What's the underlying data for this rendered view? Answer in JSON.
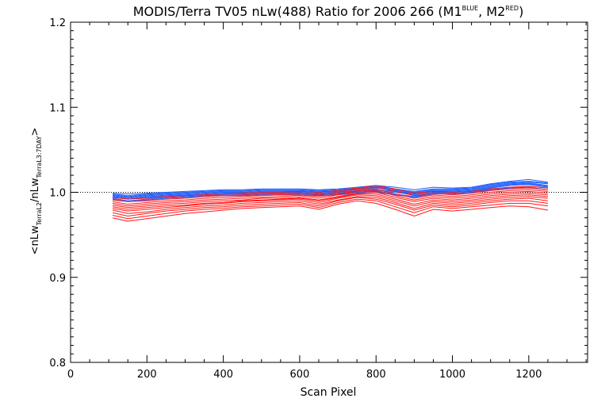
{
  "chart_data": {
    "type": "line",
    "title": {
      "main": "MODIS/Terra TV05 nLw(488) Ratio for 2006 266 (M1",
      "sup1": "BLUE",
      "mid": ", M2",
      "sup2": "RED",
      "end": ")"
    },
    "xlabel": "Scan Pixel",
    "ylabel": {
      "open": "<nLw",
      "sub1": "TerraL2",
      "slash": "/nLw",
      "sub2": "TerraL3:7DAY",
      "close": ">"
    },
    "xlim": [
      0,
      1354
    ],
    "ylim": [
      0.8,
      1.2
    ],
    "xticks": [
      "0",
      "200",
      "400",
      "600",
      "800",
      "1000",
      "1200"
    ],
    "yticks": [
      "0.8",
      "0.9",
      "1.0",
      "1.1",
      "1.2"
    ],
    "reference_line": 1.0,
    "grid": false,
    "x": [
      110,
      150,
      200,
      250,
      300,
      350,
      400,
      450,
      500,
      550,
      600,
      650,
      700,
      750,
      800,
      850,
      900,
      950,
      1000,
      1050,
      1100,
      1150,
      1200,
      1250
    ],
    "series": [
      {
        "color": "#1e5fff",
        "values": [
          0.999,
          0.998,
          0.999,
          1.0,
          1.001,
          1.002,
          1.003,
          1.003,
          1.004,
          1.004,
          1.004,
          1.003,
          1.004,
          1.006,
          1.008,
          1.006,
          1.003,
          1.006,
          1.005,
          1.006,
          1.01,
          1.013,
          1.015,
          1.012
        ]
      },
      {
        "color": "#1e5fff",
        "values": [
          0.998,
          0.996,
          0.998,
          0.999,
          1.0,
          1.001,
          1.002,
          1.002,
          1.003,
          1.003,
          1.003,
          1.002,
          1.003,
          1.005,
          1.007,
          1.004,
          1.001,
          1.004,
          1.004,
          1.005,
          1.009,
          1.012,
          1.013,
          1.011
        ]
      },
      {
        "color": "#1e5fff",
        "values": [
          0.997,
          0.995,
          0.997,
          0.998,
          0.999,
          1.0,
          1.001,
          1.001,
          1.002,
          1.002,
          1.002,
          1.001,
          1.002,
          1.004,
          1.006,
          1.003,
          1.0,
          1.003,
          1.003,
          1.004,
          1.008,
          1.011,
          1.012,
          1.01
        ]
      },
      {
        "color": "#1e5fff",
        "values": [
          0.996,
          0.994,
          0.996,
          0.997,
          0.998,
          0.999,
          1.0,
          1.0,
          1.001,
          1.001,
          1.001,
          1.0,
          1.001,
          1.003,
          1.005,
          1.002,
          0.999,
          1.002,
          1.002,
          1.003,
          1.007,
          1.01,
          1.011,
          1.008
        ]
      },
      {
        "color": "#1e5fff",
        "values": [
          0.995,
          0.993,
          0.995,
          0.996,
          0.997,
          0.998,
          0.999,
          0.999,
          1.0,
          1.0,
          1.0,
          0.999,
          1.0,
          1.002,
          1.003,
          1.001,
          0.998,
          1.001,
          1.001,
          1.002,
          1.006,
          1.009,
          1.01,
          1.007
        ]
      },
      {
        "color": "#1e5fff",
        "values": [
          0.994,
          0.992,
          0.994,
          0.995,
          0.996,
          0.997,
          0.998,
          0.998,
          0.999,
          0.999,
          0.999,
          0.998,
          0.999,
          1.001,
          1.002,
          1.0,
          0.997,
          1.0,
          1.0,
          1.001,
          1.005,
          1.008,
          1.009,
          1.006
        ]
      },
      {
        "color": "#1e5fff",
        "values": [
          0.993,
          0.99,
          0.992,
          0.994,
          0.995,
          0.996,
          0.997,
          0.997,
          0.998,
          0.998,
          0.998,
          0.997,
          0.998,
          1.0,
          1.001,
          0.998,
          0.995,
          0.999,
          0.999,
          1.0,
          1.004,
          1.006,
          1.007,
          1.005
        ]
      },
      {
        "color": "#1e5fff",
        "values": [
          0.992,
          0.989,
          0.991,
          0.993,
          0.994,
          0.995,
          0.996,
          0.996,
          0.997,
          0.997,
          0.997,
          0.996,
          0.997,
          0.999,
          1.0,
          0.997,
          0.994,
          0.998,
          0.998,
          0.999,
          1.003,
          1.005,
          1.006,
          1.003
        ]
      },
      {
        "color": "#ff1414",
        "values": [
          0.994,
          0.992,
          0.993,
          0.995,
          0.996,
          0.997,
          0.998,
          0.999,
          1.0,
          1.0,
          1.001,
          1.0,
          1.002,
          1.005,
          1.008,
          1.004,
          0.999,
          1.001,
          1.0,
          1.001,
          1.004,
          1.006,
          1.007,
          1.005
        ]
      },
      {
        "color": "#ff1414",
        "values": [
          0.991,
          0.989,
          0.99,
          0.992,
          0.993,
          0.995,
          0.996,
          0.997,
          0.998,
          0.998,
          0.999,
          0.997,
          1.0,
          1.004,
          1.006,
          1.001,
          0.996,
          0.999,
          0.997,
          0.999,
          1.002,
          1.004,
          1.005,
          1.003
        ]
      },
      {
        "color": "#ff1414",
        "values": [
          0.989,
          0.986,
          0.988,
          0.99,
          0.991,
          0.993,
          0.994,
          0.995,
          0.996,
          0.997,
          0.997,
          0.995,
          0.998,
          1.002,
          1.004,
          0.998,
          0.993,
          0.997,
          0.995,
          0.997,
          1.0,
          1.002,
          1.003,
          1.001
        ]
      },
      {
        "color": "#ff1414",
        "values": [
          0.987,
          0.984,
          0.986,
          0.988,
          0.989,
          0.991,
          0.992,
          0.993,
          0.994,
          0.995,
          0.996,
          0.993,
          0.997,
          1.001,
          1.002,
          0.996,
          0.991,
          0.995,
          0.993,
          0.995,
          0.998,
          1.0,
          1.001,
          0.999
        ]
      },
      {
        "color": "#ff1414",
        "values": [
          0.985,
          0.982,
          0.984,
          0.986,
          0.987,
          0.989,
          0.99,
          0.991,
          0.993,
          0.993,
          0.994,
          0.991,
          0.995,
          0.999,
          1.0,
          0.994,
          0.989,
          0.993,
          0.991,
          0.993,
          0.996,
          0.998,
          0.999,
          0.997
        ]
      },
      {
        "color": "#ff1414",
        "values": [
          0.983,
          0.98,
          0.982,
          0.984,
          0.985,
          0.987,
          0.988,
          0.99,
          0.991,
          0.992,
          0.993,
          0.99,
          0.994,
          0.998,
          0.998,
          0.992,
          0.986,
          0.991,
          0.989,
          0.991,
          0.994,
          0.996,
          0.997,
          0.995
        ]
      },
      {
        "color": "#ff1414",
        "values": [
          0.981,
          0.978,
          0.98,
          0.982,
          0.984,
          0.986,
          0.987,
          0.989,
          0.99,
          0.991,
          0.992,
          0.988,
          0.993,
          0.997,
          0.996,
          0.99,
          0.984,
          0.989,
          0.987,
          0.989,
          0.992,
          0.994,
          0.995,
          0.993
        ]
      },
      {
        "color": "#ff1414",
        "values": [
          0.979,
          0.975,
          0.977,
          0.98,
          0.982,
          0.984,
          0.985,
          0.987,
          0.988,
          0.989,
          0.99,
          0.986,
          0.991,
          0.995,
          0.994,
          0.988,
          0.981,
          0.987,
          0.985,
          0.987,
          0.99,
          0.992,
          0.993,
          0.99
        ]
      },
      {
        "color": "#ff1414",
        "values": [
          0.976,
          0.972,
          0.975,
          0.978,
          0.98,
          0.982,
          0.983,
          0.985,
          0.986,
          0.987,
          0.988,
          0.984,
          0.99,
          0.994,
          0.992,
          0.986,
          0.979,
          0.985,
          0.983,
          0.985,
          0.988,
          0.99,
          0.99,
          0.987
        ]
      },
      {
        "color": "#ff1414",
        "values": [
          0.973,
          0.969,
          0.972,
          0.975,
          0.978,
          0.98,
          0.981,
          0.983,
          0.984,
          0.985,
          0.986,
          0.982,
          0.988,
          0.992,
          0.99,
          0.983,
          0.976,
          0.983,
          0.981,
          0.983,
          0.985,
          0.987,
          0.987,
          0.984
        ]
      },
      {
        "color": "#ff1414",
        "values": [
          0.97,
          0.966,
          0.969,
          0.972,
          0.975,
          0.977,
          0.979,
          0.981,
          0.982,
          0.983,
          0.984,
          0.98,
          0.986,
          0.99,
          0.987,
          0.98,
          0.972,
          0.98,
          0.978,
          0.98,
          0.982,
          0.984,
          0.983,
          0.979
        ]
      }
    ]
  }
}
